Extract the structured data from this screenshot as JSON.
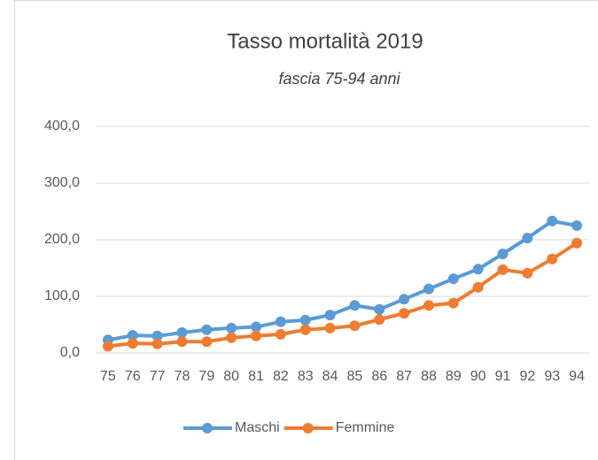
{
  "chart_data": {
    "type": "line",
    "title": "Tasso mortalità 2019",
    "subtitle": "fascia 75-94 anni",
    "categories": [
      "75",
      "76",
      "77",
      "78",
      "79",
      "80",
      "81",
      "82",
      "83",
      "84",
      "85",
      "86",
      "87",
      "88",
      "89",
      "90",
      "91",
      "92",
      "93",
      "94"
    ],
    "series": [
      {
        "name": "Maschi",
        "color": "#5b9bd5",
        "values": [
          23,
          31,
          30,
          36,
          41,
          44,
          46,
          55,
          58,
          67,
          84,
          77,
          95,
          113,
          131,
          148,
          175,
          203,
          233,
          225
        ]
      },
      {
        "name": "Femmine",
        "color": "#ed7d31",
        "values": [
          12,
          17,
          16,
          20,
          20,
          27,
          30,
          33,
          41,
          44,
          48,
          59,
          70,
          84,
          88,
          116,
          147,
          141,
          166,
          194
        ]
      }
    ],
    "ylim": [
      0,
      400
    ],
    "yticks": [
      {
        "value": 0,
        "label": "0,0"
      },
      {
        "value": 100,
        "label": "100,0"
      },
      {
        "value": 200,
        "label": "200,0"
      },
      {
        "value": 300,
        "label": "300,0"
      },
      {
        "value": 400,
        "label": "400,0"
      }
    ],
    "grid": true,
    "legend": "bottom"
  }
}
